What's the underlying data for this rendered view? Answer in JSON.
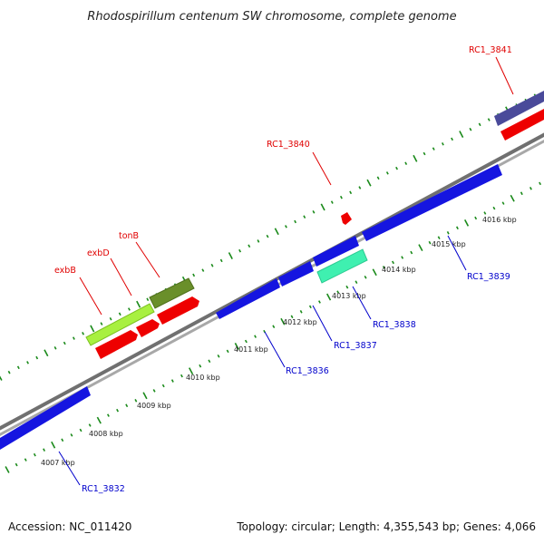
{
  "title": "Rhodospirillum centenum SW chromosome, complete genome",
  "footer": {
    "accession": "Accession: NC_011420",
    "topology": "Topology: circular; Length: 4,355,543 bp; Genes: 4,066"
  },
  "ticks": [
    "4007 kbp",
    "4008 kbp",
    "4009 kbp",
    "4010 kbp",
    "4011 kbp",
    "4012 kbp",
    "4013 kbp",
    "4014 kbp",
    "4015 kbp",
    "4016 kbp"
  ],
  "forward_labels": [
    "exbB",
    "exbD",
    "tonB",
    "RC1_3840",
    "RC1_3841"
  ],
  "reverse_labels": [
    "RC1_3832",
    "RC1_3836",
    "RC1_3837",
    "RC1_3838",
    "RC1_3839"
  ],
  "colors": {
    "red_label": "#e00000",
    "blue_label": "#0000cc",
    "gene_blue": "#1515e0",
    "gene_red": "#ee0000",
    "gene_lime": "#a8f040",
    "gene_olive": "#6a8f2a",
    "gene_teal": "#3ff0b0",
    "gene_purple": "#4a4a9a",
    "tick_green": "#1a8a1a",
    "backbone": "#8c8c8c"
  }
}
